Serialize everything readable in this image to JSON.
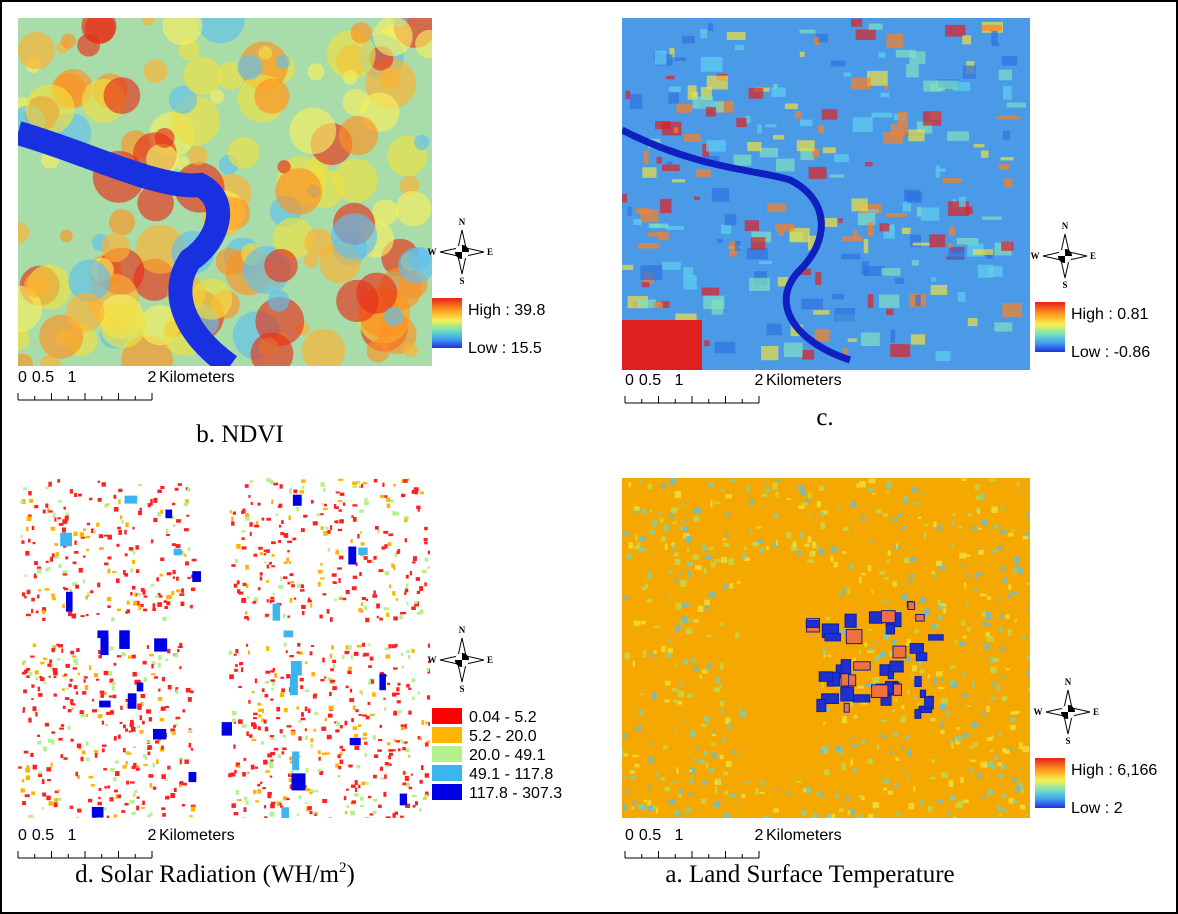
{
  "compass": [
    "N",
    "E",
    "S",
    "W"
  ],
  "scale_bar": [
    "0",
    "0.5",
    "1",
    "2",
    "Kilometers"
  ],
  "panels": [
    {
      "caption": "b. NDVI",
      "legend": {
        "high": "High : 39.8",
        "low": "Low : 15.5"
      }
    },
    {
      "caption": "c.",
      "legend": {
        "high": "High : 0.81",
        "low": "Low : -0.86"
      }
    },
    {
      "caption": "d. Solar Radiation (WH/m",
      "caption_sup": "2",
      "caption_tail": ")",
      "classes": [
        {
          "label": "0.04 - 5.2",
          "color": "#ff0000"
        },
        {
          "label": "5.2 - 20.0",
          "color": "#ffb400"
        },
        {
          "label": "20.0 - 49.1",
          "color": "#b4f08c"
        },
        {
          "label": "49.1 - 117.8",
          "color": "#3cb4f0"
        },
        {
          "label": "117.8 - 307.3",
          "color": "#0000e6"
        }
      ]
    },
    {
      "caption": "a. Land Surface Temperature",
      "legend": {
        "high": "High : 6,166",
        "low": "Low : 2"
      }
    }
  ]
}
